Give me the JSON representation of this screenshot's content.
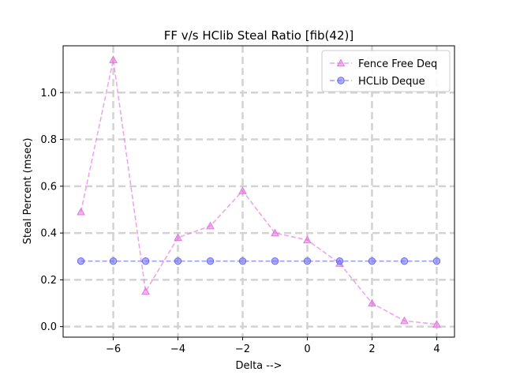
{
  "chart_data": {
    "type": "line",
    "title": "FF v/s HClib Steal Ratio [fib(42)]",
    "xlabel": "Delta -->",
    "ylabel": "Steal Percent (msec)",
    "xlim": [
      -7.55,
      4.55
    ],
    "ylim": [
      -0.045,
      1.2
    ],
    "xticks": [
      -6,
      -4,
      -2,
      0,
      2,
      4
    ],
    "xtick_labels": [
      "−6",
      "−4",
      "−2",
      "0",
      "2",
      "4"
    ],
    "yticks": [
      0.0,
      0.2,
      0.4,
      0.6,
      0.8,
      1.0
    ],
    "ytick_labels": [
      "0.0",
      "0.2",
      "0.4",
      "0.6",
      "0.8",
      "1.0"
    ],
    "grid": true,
    "grid_style": "dashed",
    "legend_position": "upper-right",
    "series": [
      {
        "name": "Fence Free Deq",
        "color": "#e377e0",
        "marker": "triangle",
        "linestyle": "dashed",
        "x": [
          -7,
          -6,
          -5,
          -4,
          -3,
          -2,
          -1,
          0,
          1,
          2,
          3,
          4
        ],
        "y": [
          0.49,
          1.14,
          0.15,
          0.38,
          0.43,
          0.58,
          0.4,
          0.37,
          0.27,
          0.1,
          0.025,
          0.01
        ]
      },
      {
        "name": "HCLib Deque",
        "color": "#6b6bf0",
        "marker": "circle",
        "linestyle": "dashed",
        "x": [
          -7,
          -6,
          -5,
          -4,
          -3,
          -2,
          -1,
          0,
          1,
          2,
          3,
          4
        ],
        "y": [
          0.28,
          0.28,
          0.28,
          0.28,
          0.28,
          0.28,
          0.28,
          0.28,
          0.28,
          0.28,
          0.28,
          0.28
        ]
      }
    ]
  }
}
